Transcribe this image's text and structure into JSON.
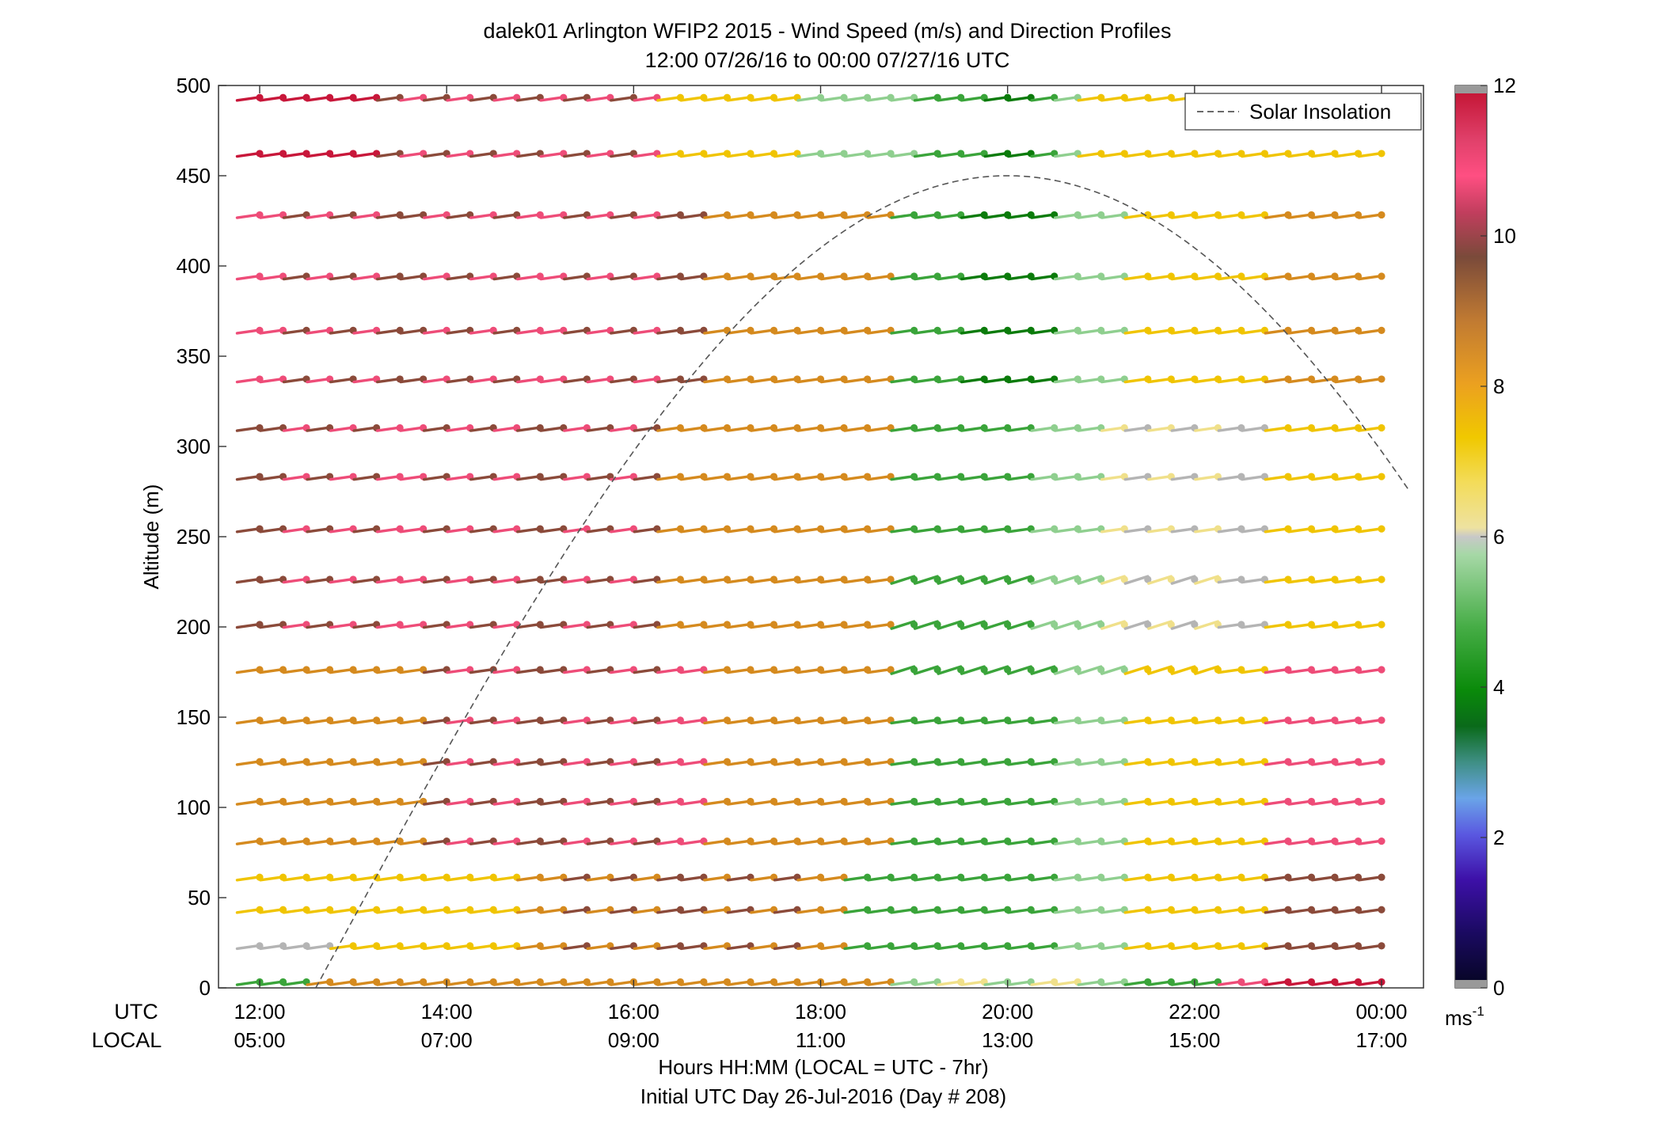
{
  "title_line1": "dalek01 Arlington WFIP2 2015 - Wind Speed (m/s) and Direction Profiles",
  "title_line2": "12:00 07/26/16 to 00:00 07/27/16  UTC",
  "ylabel": "Altitude (m)",
  "xlabel": "Hours HH:MM  (LOCAL = UTC - 7hr)",
  "footer": "Initial UTC Day 26-Jul-2016 (Day # 208)",
  "row_label_utc": "UTC",
  "row_label_local": "LOCAL",
  "legend_label": "Solar Insolation",
  "colorbar_unit": "ms",
  "colorbar_unit_exp": "-1",
  "colorbar_ticks": [
    "0",
    "2",
    "4",
    "6",
    "8",
    "10",
    "12"
  ],
  "chart_data": {
    "type": "wind-barb profile",
    "x_hours_utc": [
      12,
      24
    ],
    "x_ticks_utc": [
      "12:00",
      "14:00",
      "16:00",
      "18:00",
      "20:00",
      "22:00",
      "00:00"
    ],
    "x_ticks_local": [
      "05:00",
      "07:00",
      "09:00",
      "11:00",
      "13:00",
      "15:00",
      "17:00"
    ],
    "ylim": [
      0,
      500
    ],
    "y_ticks": [
      "0",
      "50",
      "100",
      "150",
      "200",
      "250",
      "300",
      "350",
      "400",
      "450",
      "500"
    ],
    "altitudes_m": [
      2,
      22,
      42,
      60,
      80,
      102,
      124,
      147,
      175,
      200,
      225,
      253,
      282,
      309,
      336,
      363,
      393,
      427,
      461,
      492
    ],
    "colorbar_range": [
      0,
      12
    ],
    "colors": {
      "red": "#c8173a",
      "pink": "#ee4c78",
      "brown": "#8b4a3a",
      "orange": "#d58a1e",
      "yellow": "#f0c400",
      "lightyellow": "#f0e08a",
      "gray": "#b4b4b4",
      "lightgreen": "#8fcf8f",
      "green": "#3aa43a",
      "darkgreen": "#0b7b0b",
      "teal": "#3a8f7a",
      "blue": "#5590d8"
    },
    "solar_insolation": {
      "start_hour_utc": 12.6,
      "peak_hour_utc": 20.0,
      "peak_altitude_m": 450
    },
    "legend_position": "top-right"
  }
}
